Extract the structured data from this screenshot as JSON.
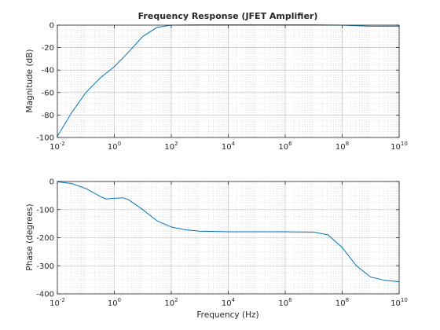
{
  "chart_data": [
    {
      "type": "line",
      "title": "Frequency Response (JFET Amplifier)",
      "xlabel": "",
      "ylabel": "Magnitude (dB)",
      "xscale": "log",
      "xlim": [
        0.01,
        10000000000
      ],
      "ylim": [
        -100,
        0
      ],
      "grid": "on (major and minor)",
      "x_ticks": [
        {
          "base": "10",
          "exp": "-2",
          "value": 0.01
        },
        {
          "base": "10",
          "exp": "0",
          "value": 1
        },
        {
          "base": "10",
          "exp": "2",
          "value": 100
        },
        {
          "base": "10",
          "exp": "4",
          "value": 10000
        },
        {
          "base": "10",
          "exp": "6",
          "value": 1000000
        },
        {
          "base": "10",
          "exp": "8",
          "value": 100000000
        },
        {
          "base": "10",
          "exp": "10",
          "value": 10000000000
        }
      ],
      "y_ticks": [
        "0",
        "-20",
        "-40",
        "-60",
        "-80",
        "-100"
      ],
      "line_color": "#0072BD",
      "series": [
        {
          "x": [
            0.01,
            0.0316,
            0.1,
            0.316,
            1,
            3.16,
            10,
            31.6,
            100,
            1000,
            10000,
            100000,
            1000000,
            10000000,
            100000000,
            316000000,
            1000000000,
            10000000000
          ],
          "values": [
            -99,
            -78,
            -60,
            -47,
            -37,
            -24,
            -10,
            -2,
            0,
            0.3,
            0.3,
            0.3,
            0.3,
            0.3,
            0,
            -0.5,
            -1,
            -1
          ]
        }
      ]
    },
    {
      "type": "line",
      "title": "",
      "xlabel": "Frequency (Hz)",
      "ylabel": "Phase (degrees)",
      "xscale": "log",
      "xlim": [
        0.01,
        10000000000
      ],
      "ylim": [
        -400,
        0
      ],
      "grid": "on (major and minor)",
      "x_ticks": [
        {
          "base": "10",
          "exp": "-2",
          "value": 0.01
        },
        {
          "base": "10",
          "exp": "0",
          "value": 1
        },
        {
          "base": "10",
          "exp": "2",
          "value": 100
        },
        {
          "base": "10",
          "exp": "4",
          "value": 10000
        },
        {
          "base": "10",
          "exp": "6",
          "value": 1000000
        },
        {
          "base": "10",
          "exp": "8",
          "value": 100000000
        },
        {
          "base": "10",
          "exp": "10",
          "value": 10000000000
        }
      ],
      "y_ticks": [
        "0",
        "-100",
        "-200",
        "-300",
        "-400"
      ],
      "line_color": "#0072BD",
      "series": [
        {
          "x": [
            0.01,
            0.0316,
            0.1,
            0.316,
            0.5,
            1,
            2,
            3.16,
            10,
            31.6,
            100,
            316,
            1000,
            10000,
            100000,
            1000000,
            10000000,
            31600000,
            100000000,
            316000000,
            1000000000,
            3160000000,
            10000000000
          ],
          "values": [
            -1,
            -7,
            -25,
            -53,
            -62,
            -60,
            -58,
            -65,
            -100,
            -140,
            -162,
            -172,
            -177,
            -179,
            -179,
            -179,
            -180,
            -190,
            -235,
            -300,
            -340,
            -352,
            -357
          ]
        }
      ]
    }
  ]
}
